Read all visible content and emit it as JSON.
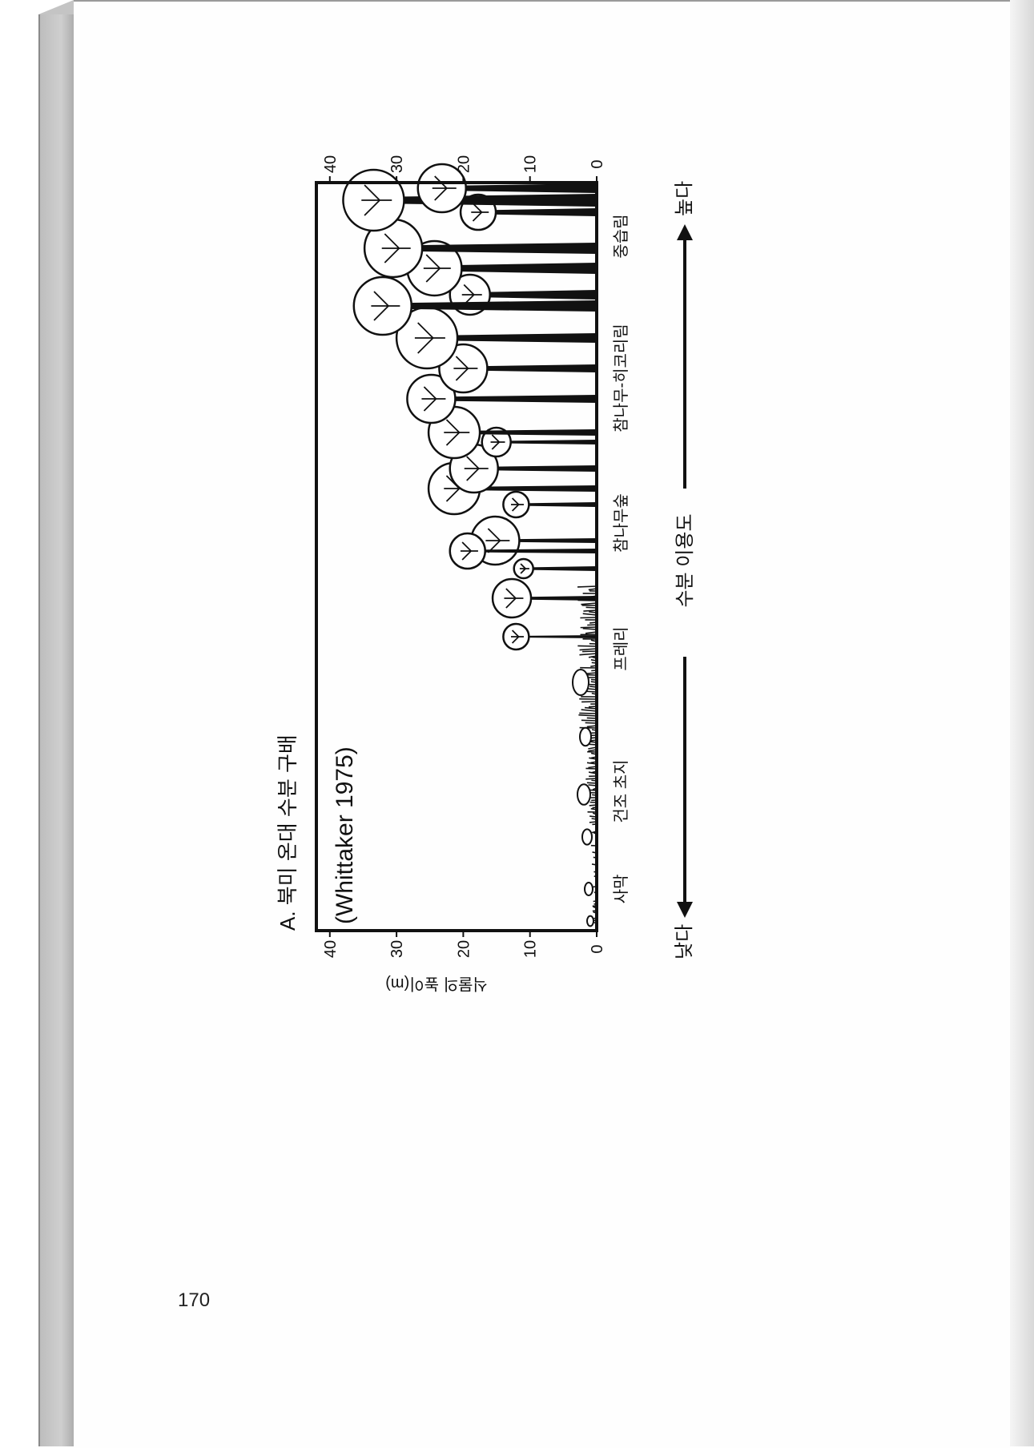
{
  "page_number": "170",
  "figure": {
    "title": "A.  북미 온대 수분 구배",
    "source": "(Whittaker 1975)",
    "y_axis_label": "식물의 높이(m)",
    "y_ticks": [
      "0",
      "10",
      "20",
      "30",
      "40"
    ],
    "communities": [
      "사막",
      "건조 초지",
      "프레리",
      "참나무숲",
      "참나무-히코리림",
      "중습림"
    ],
    "x_axis_label": "수분 이용도",
    "low_label": "낮다",
    "high_label": "높다",
    "ink_color": "#111111"
  }
}
